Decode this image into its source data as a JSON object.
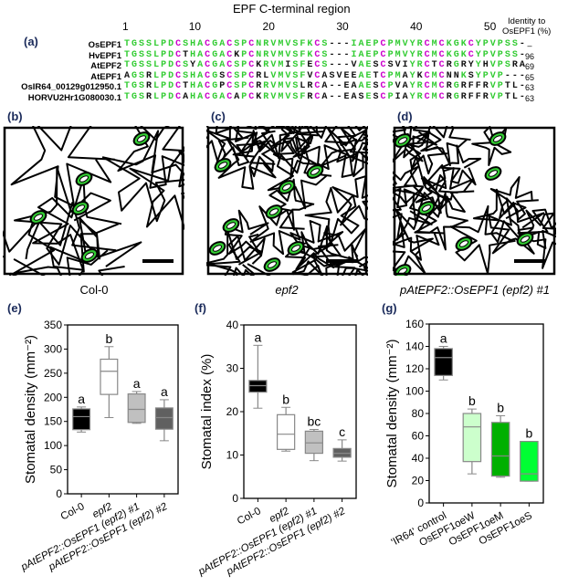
{
  "panel_a": {
    "label": "(a)",
    "title": "EPF C-terminal region",
    "position_numbers": [
      "1",
      "10",
      "20",
      "30",
      "40",
      "50"
    ],
    "identity_header": [
      "Identity to",
      "OsEPF1 (%)"
    ],
    "rows": [
      {
        "name": "OsEPF1",
        "seq": "TGSSLPDCSHACGACSPCNRVMVSFKCS---IAEPCPMVYRCMCKGKCYPVPSS-",
        "identity": "–"
      },
      {
        "name": "HvEPF1",
        "seq": "TGSSLPDCTHACGACKPCNRVMVSFKCS---IAEPCPMVYRCMCKGKCYPVPSS-",
        "identity": "96"
      },
      {
        "name": "AtEPF2",
        "seq": "TGSSLPDCSYACGACSPCKRVMISFECS---VAESCSVIYRCTCRGRYYHVPSRA",
        "identity": "69"
      },
      {
        "name": "AtEPF1",
        "seq": "AGSRLPDCSHACGSCSPCRLVMVSFVCASVEEAETCPMAYKCMCNNKSYPVP---",
        "identity": "65"
      },
      {
        "name": "OsIR64_00129g012950.1",
        "seq": "TGSRLPDCTHACGPCSPCRRVMVSLRCA--EAAESCPVAYRCMCRGRFFRVPTL-",
        "identity": "63"
      },
      {
        "name": "HORVU2Hr1G080030.1",
        "seq": "TGSRLPDCAHACGACAPCKRVMVSFRCA--EASESCPIAYRCMCRGRFFRVPTL-",
        "identity": "63"
      }
    ],
    "colors": {
      "conserved": "#33cc33",
      "cysteine": "#cc00cc",
      "variable": "#111111"
    }
  },
  "panels_img": [
    {
      "label": "(b)",
      "caption": "Col-0"
    },
    {
      "label": "(c)",
      "caption": "epf2"
    },
    {
      "label": "(d)",
      "caption": "pAtEPF2::OsEPF1 (epf2) #1"
    }
  ],
  "chart_data": [
    {
      "type": "box",
      "label": "(e)",
      "ylabel": "Stomatal density (mm⁻²)",
      "ylim": [
        0,
        350
      ],
      "yticks": [
        0,
        50,
        100,
        150,
        200,
        250,
        300,
        350
      ],
      "categories": [
        "Col-0",
        "epf2",
        "pAtEPF2::OsEPF1 (epf2) #1",
        "pAtEPF2::OsEPF1 (epf2) #2"
      ],
      "boxes": [
        [
          128,
          133,
          160,
          176,
          180
        ],
        [
          158,
          206,
          254,
          279,
          305
        ],
        [
          146,
          148,
          175,
          207,
          212
        ],
        [
          110,
          134,
          158,
          178,
          195
        ]
      ],
      "fills": [
        "#000000",
        "#ffffff",
        "#c0c0c0",
        "#606060"
      ],
      "letters": [
        "a",
        "b",
        "a",
        "a"
      ]
    },
    {
      "type": "box",
      "label": "(f)",
      "ylabel": "Stomatal index (%)",
      "ylim": [
        0,
        40
      ],
      "yticks": [
        0,
        10,
        20,
        30,
        40
      ],
      "categories": [
        "Col-0",
        "epf2",
        "pAtEPF2::OsEPF1 (epf2) #1",
        "pAtEPF2::OsEPF1 (epf2) #2"
      ],
      "boxes": [
        [
          20.8,
          24.5,
          26,
          27.2,
          35.3
        ],
        [
          10.9,
          11.3,
          14.8,
          19.3,
          21
        ],
        [
          8.7,
          10.4,
          12.8,
          15.5,
          15.9
        ],
        [
          8.6,
          9.5,
          10.4,
          11.5,
          13.5
        ]
      ],
      "fills": [
        "#000000",
        "#ffffff",
        "#c0c0c0",
        "#606060"
      ],
      "letters": [
        "a",
        "b",
        "bc",
        "c"
      ]
    },
    {
      "type": "box",
      "label": "(g)",
      "ylabel": "Stomatal density (mm⁻²)",
      "ylim": [
        0,
        160
      ],
      "yticks": [
        0,
        20,
        40,
        60,
        80,
        100,
        120,
        140,
        160
      ],
      "categories": [
        "'IR64' control",
        "OsEPF1oeW",
        "OsEPF1oeM",
        "OsEPF1oeS"
      ],
      "boxes": [
        [
          110,
          114,
          130,
          138,
          140
        ],
        [
          26,
          37,
          68,
          80,
          84
        ],
        [
          23,
          24,
          42,
          72,
          78
        ],
        [
          19.5,
          19.5,
          26,
          55,
          55
        ]
      ],
      "fills": [
        "#000000",
        "#ccffcc",
        "#00b000",
        "#00ff33"
      ],
      "letters": [
        "a",
        "b",
        "b",
        "b"
      ]
    }
  ]
}
